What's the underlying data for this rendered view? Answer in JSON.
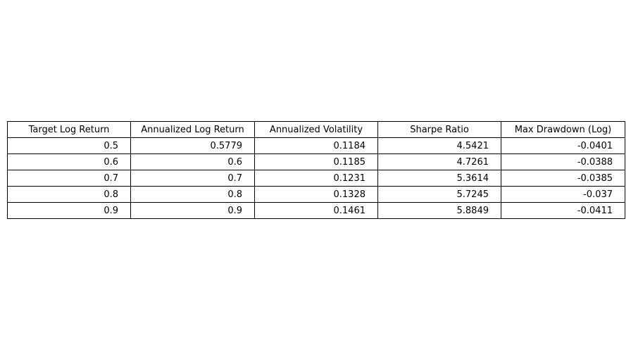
{
  "chart_data": {
    "type": "table",
    "columns": [
      "Target Log Return",
      "Annualized Log Return",
      "Annualized Volatility",
      "Sharpe Ratio",
      "Max Drawdown (Log)"
    ],
    "rows": [
      [
        "0.5",
        "0.5779",
        "0.1184",
        "4.5421",
        "-0.0401"
      ],
      [
        "0.6",
        "0.6",
        "0.1185",
        "4.7261",
        "-0.0388"
      ],
      [
        "0.7",
        "0.7",
        "0.1231",
        "5.3614",
        "-0.0385"
      ],
      [
        "0.8",
        "0.8",
        "0.1328",
        "5.7245",
        "-0.037"
      ],
      [
        "0.9",
        "0.9",
        "0.1461",
        "5.8849",
        "-0.0411"
      ]
    ]
  }
}
